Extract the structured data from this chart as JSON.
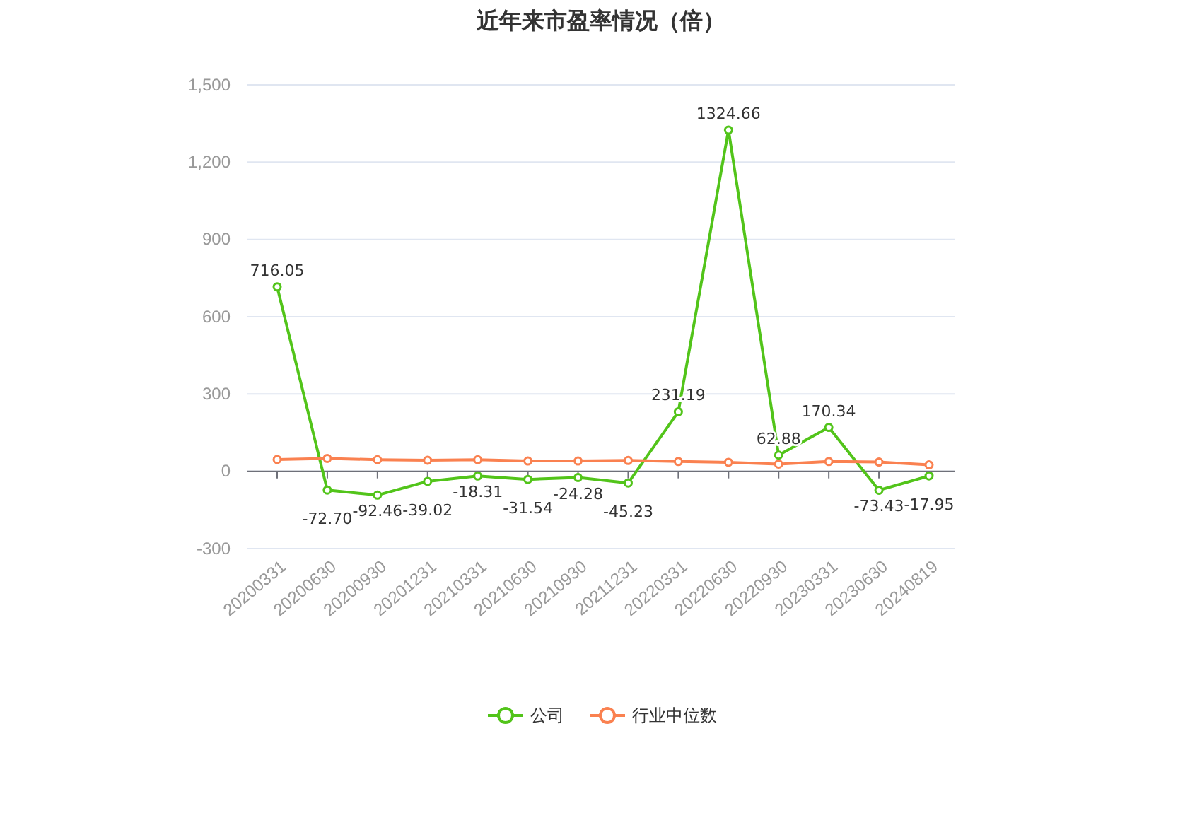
{
  "chart_data": {
    "type": "line",
    "title": "近年来市盈率情况（倍）",
    "categories": [
      "20200331",
      "20200630",
      "20200930",
      "20201231",
      "20210331",
      "20210630",
      "20210930",
      "20211231",
      "20220331",
      "20220630",
      "20220930",
      "20230331",
      "20230630",
      "20240819"
    ],
    "series": [
      {
        "name": "公司",
        "color": "#52c41a",
        "values": [
          716.05,
          -72.7,
          -92.46,
          -39.02,
          -18.31,
          -31.54,
          -24.28,
          -45.23,
          231.19,
          1324.66,
          62.88,
          170.34,
          -73.43,
          -17.95
        ],
        "value_labels": [
          "716.05",
          "-72.70",
          "-92.46",
          "-39.02",
          "-18.31",
          "-31.54",
          "-24.28",
          "-45.23",
          "231.19",
          "1324.66",
          "62.88",
          "170.34",
          "-73.43",
          "-17.95"
        ]
      },
      {
        "name": "行业中位数",
        "color": "#fa8150",
        "values": [
          46,
          50,
          45,
          43,
          45,
          40,
          40,
          42,
          38,
          35,
          28,
          38,
          36,
          25
        ]
      }
    ],
    "ylim": [
      -300,
      1500
    ],
    "yticks": [
      -300,
      0,
      300,
      600,
      900,
      {
        "value": 1200,
        "label": "1,200"
      },
      {
        "value": 1500,
        "label": "1,500"
      }
    ],
    "grid": "y",
    "legend": "bottom",
    "marker": "circle",
    "line_style": "solid"
  }
}
